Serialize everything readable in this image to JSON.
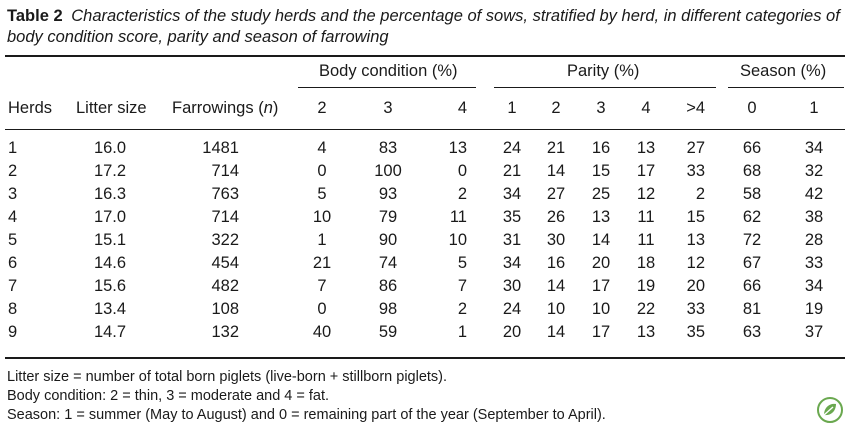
{
  "caption": {
    "table_number": "Table 2",
    "title": "Characteristics of the study herds and the percentage of sows, stratified by herd, in different categories of body condition score, parity and season of farrowing"
  },
  "headers": {
    "group_body_condition": "Body condition (%)",
    "group_parity": "Parity (%)",
    "group_season": "Season (%)",
    "herds": "Herds",
    "litter_size": "Litter size",
    "farrowings_prefix": "Farrowings (",
    "farrowings_n": "n",
    "farrowings_suffix": ")",
    "bc": [
      "2",
      "3",
      "4"
    ],
    "parity": [
      "1",
      "2",
      "3",
      "4",
      ">4"
    ],
    "season": [
      "0",
      "1"
    ]
  },
  "rows": [
    [
      "1",
      "16.0",
      "1481",
      "4",
      "83",
      "13",
      "24",
      "21",
      "16",
      "13",
      "27",
      "66",
      "34"
    ],
    [
      "2",
      "17.2",
      "714",
      "0",
      "100",
      "0",
      "21",
      "14",
      "15",
      "17",
      "33",
      "68",
      "32"
    ],
    [
      "3",
      "16.3",
      "763",
      "5",
      "93",
      "2",
      "34",
      "27",
      "25",
      "12",
      "2",
      "58",
      "42"
    ],
    [
      "4",
      "17.0",
      "714",
      "10",
      "79",
      "11",
      "35",
      "26",
      "13",
      "11",
      "15",
      "62",
      "38"
    ],
    [
      "5",
      "15.1",
      "322",
      "1",
      "90",
      "10",
      "31",
      "30",
      "14",
      "11",
      "13",
      "72",
      "28"
    ],
    [
      "6",
      "14.6",
      "454",
      "21",
      "74",
      "5",
      "34",
      "16",
      "20",
      "18",
      "12",
      "67",
      "33"
    ],
    [
      "7",
      "15.6",
      "482",
      "7",
      "86",
      "7",
      "30",
      "14",
      "17",
      "19",
      "20",
      "66",
      "34"
    ],
    [
      "8",
      "13.4",
      "108",
      "0",
      "98",
      "2",
      "24",
      "10",
      "10",
      "22",
      "33",
      "81",
      "19"
    ],
    [
      "9",
      "14.7",
      "132",
      "40",
      "59",
      "1",
      "20",
      "14",
      "17",
      "13",
      "35",
      "63",
      "37"
    ]
  ],
  "footnotes": [
    "Litter size = number of total born piglets (live-born + stillborn piglets).",
    "Body condition: 2 = thin, 3 = moderate and 4 = fat.",
    "Season: 1 = summer (May to August) and 0 = remaining part of the year (September to April)."
  ],
  "logo_icon": "leaf-badge-icon",
  "colors": {
    "text": "#1a1a1a",
    "logo": "#6aa84f"
  }
}
